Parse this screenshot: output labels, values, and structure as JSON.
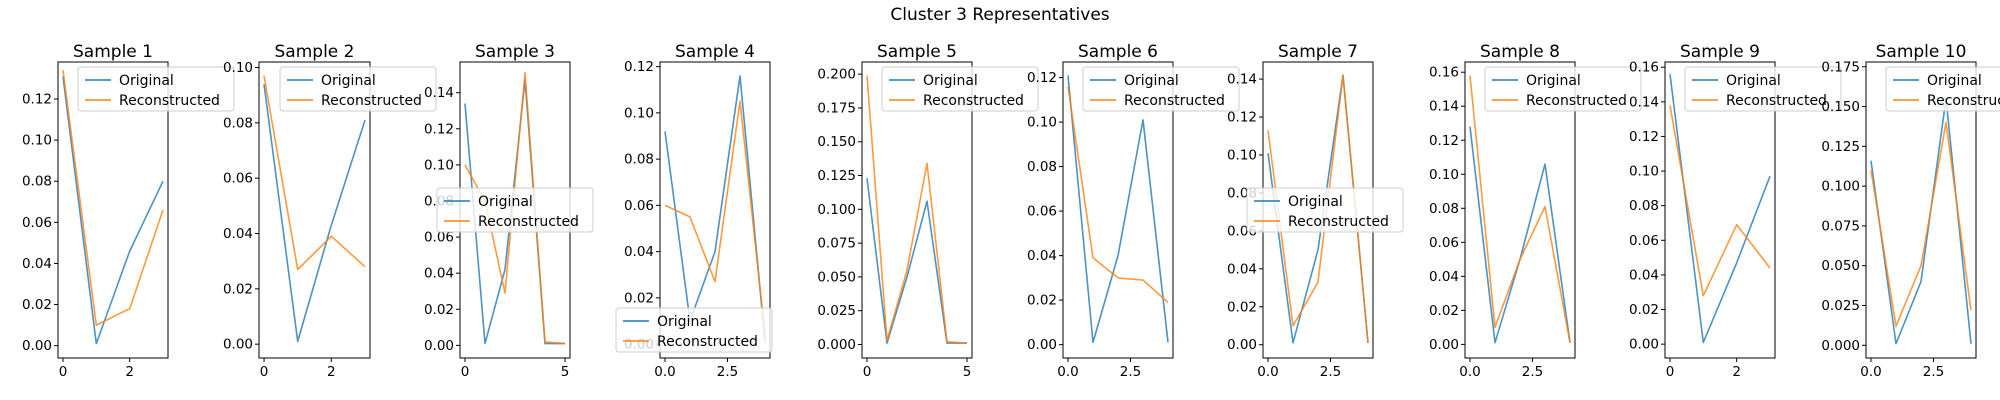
{
  "figure": {
    "title": "Cluster 3 Representatives"
  },
  "colors": {
    "original": "#1f77b4",
    "reconstructed": "#ff7f0e"
  },
  "chart_data": [
    {
      "type": "line",
      "title": "Sample 1",
      "x_ticks": [
        "0",
        "2"
      ],
      "x_tick_values": [
        0,
        2
      ],
      "xlim": [
        -0.15,
        3.15
      ],
      "y_ticks": [
        "0.00",
        "0.02",
        "0.04",
        "0.06",
        "0.08",
        "0.10",
        "0.12"
      ],
      "y_tick_values": [
        0,
        0.02,
        0.04,
        0.06,
        0.08,
        0.1,
        0.12
      ],
      "ylim": [
        -0.006,
        0.138
      ],
      "legend_position": "upper right",
      "series": [
        {
          "name": "Original",
          "x": [
            0,
            1,
            2,
            3
          ],
          "y": [
            0.131,
            0.001,
            0.046,
            0.08
          ]
        },
        {
          "name": "Reconstructed",
          "x": [
            0,
            1,
            2,
            3
          ],
          "y": [
            0.134,
            0.01,
            0.018,
            0.066
          ]
        }
      ]
    },
    {
      "type": "line",
      "title": "Sample 2",
      "x_ticks": [
        "0",
        "2"
      ],
      "x_tick_values": [
        0,
        2
      ],
      "xlim": [
        -0.15,
        3.15
      ],
      "y_ticks": [
        "0.00",
        "0.02",
        "0.04",
        "0.06",
        "0.08",
        "0.10"
      ],
      "y_tick_values": [
        0,
        0.02,
        0.04,
        0.06,
        0.08,
        0.1
      ],
      "ylim": [
        -0.005,
        0.102
      ],
      "legend_position": "upper right",
      "series": [
        {
          "name": "Original",
          "x": [
            0,
            1,
            2,
            3
          ],
          "y": [
            0.094,
            0.001,
            0.043,
            0.081
          ]
        },
        {
          "name": "Reconstructed",
          "x": [
            0,
            1,
            2,
            3
          ],
          "y": [
            0.097,
            0.027,
            0.039,
            0.028
          ]
        }
      ]
    },
    {
      "type": "line",
      "title": "Sample 3",
      "x_ticks": [
        "0",
        "5"
      ],
      "x_tick_values": [
        0,
        5
      ],
      "xlim": [
        -0.25,
        5.25
      ],
      "y_ticks": [
        "0.00",
        "0.02",
        "0.04",
        "0.06",
        "0.08",
        "0.10",
        "0.12",
        "0.14"
      ],
      "y_tick_values": [
        0,
        0.02,
        0.04,
        0.06,
        0.08,
        0.1,
        0.12,
        0.14
      ],
      "ylim": [
        -0.007,
        0.157
      ],
      "legend_position": "center",
      "series": [
        {
          "name": "Original",
          "x": [
            0,
            1,
            2,
            3,
            4,
            5
          ],
          "y": [
            0.134,
            0.001,
            0.042,
            0.147,
            0.001,
            0.001
          ]
        },
        {
          "name": "Reconstructed",
          "x": [
            0,
            1,
            2,
            3,
            4,
            5
          ],
          "y": [
            0.1,
            0.08,
            0.029,
            0.151,
            0.002,
            0.001
          ]
        }
      ]
    },
    {
      "type": "line",
      "title": "Sample 4",
      "x_ticks": [
        "0.0",
        "2.5"
      ],
      "x_tick_values": [
        0,
        2.5
      ],
      "xlim": [
        -0.2,
        4.2
      ],
      "y_ticks": [
        "0.00",
        "0.02",
        "0.04",
        "0.06",
        "0.08",
        "0.10",
        "0.12"
      ],
      "y_tick_values": [
        0,
        0.02,
        0.04,
        0.06,
        0.08,
        0.1,
        0.12
      ],
      "ylim": [
        -0.006,
        0.122
      ],
      "legend_position": "lower left",
      "series": [
        {
          "name": "Original",
          "x": [
            0,
            1,
            2,
            3,
            4
          ],
          "y": [
            0.092,
            0.01,
            0.04,
            0.116,
            0.001
          ]
        },
        {
          "name": "Reconstructed",
          "x": [
            0,
            1,
            2,
            3,
            4
          ],
          "y": [
            0.06,
            0.055,
            0.027,
            0.105,
            0.004
          ]
        }
      ]
    },
    {
      "type": "line",
      "title": "Sample 5",
      "x_ticks": [
        "0",
        "5"
      ],
      "x_tick_values": [
        0,
        5
      ],
      "xlim": [
        -0.25,
        5.25
      ],
      "y_ticks": [
        "0.000",
        "0.025",
        "0.050",
        "0.075",
        "0.100",
        "0.125",
        "0.150",
        "0.175",
        "0.200"
      ],
      "y_tick_values": [
        0,
        0.025,
        0.05,
        0.075,
        0.1,
        0.125,
        0.15,
        0.175,
        0.2
      ],
      "ylim": [
        -0.01,
        0.209
      ],
      "legend_position": "upper right",
      "series": [
        {
          "name": "Original",
          "x": [
            0,
            1,
            2,
            3,
            4,
            5
          ],
          "y": [
            0.123,
            0.001,
            0.05,
            0.106,
            0.001,
            0.001
          ]
        },
        {
          "name": "Reconstructed",
          "x": [
            0,
            1,
            2,
            3,
            4,
            5
          ],
          "y": [
            0.199,
            0.003,
            0.055,
            0.134,
            0.002,
            0.001
          ]
        }
      ]
    },
    {
      "type": "line",
      "title": "Sample 6",
      "x_ticks": [
        "0.0",
        "2.5"
      ],
      "x_tick_values": [
        0,
        2.5
      ],
      "xlim": [
        -0.2,
        4.2
      ],
      "y_ticks": [
        "0.00",
        "0.02",
        "0.04",
        "0.06",
        "0.08",
        "0.10",
        "0.12"
      ],
      "y_tick_values": [
        0,
        0.02,
        0.04,
        0.06,
        0.08,
        0.1,
        0.12
      ],
      "ylim": [
        -0.006,
        0.127
      ],
      "legend_position": "upper right",
      "series": [
        {
          "name": "Original",
          "x": [
            0,
            1,
            2,
            3,
            4
          ],
          "y": [
            0.121,
            0.001,
            0.04,
            0.101,
            0.001
          ]
        },
        {
          "name": "Reconstructed",
          "x": [
            0,
            1,
            2,
            3,
            4
          ],
          "y": [
            0.116,
            0.039,
            0.03,
            0.029,
            0.019
          ]
        }
      ]
    },
    {
      "type": "line",
      "title": "Sample 7",
      "x_ticks": [
        "0.0",
        "2.5"
      ],
      "x_tick_values": [
        0,
        2.5
      ],
      "xlim": [
        -0.2,
        4.2
      ],
      "y_ticks": [
        "0.00",
        "0.02",
        "0.04",
        "0.06",
        "0.08",
        "0.10",
        "0.12",
        "0.14"
      ],
      "y_tick_values": [
        0,
        0.02,
        0.04,
        0.06,
        0.08,
        0.1,
        0.12,
        0.14
      ],
      "ylim": [
        -0.007,
        0.149
      ],
      "legend_position": "center left",
      "series": [
        {
          "name": "Original",
          "x": [
            0,
            1,
            2,
            3,
            4
          ],
          "y": [
            0.101,
            0.001,
            0.05,
            0.142,
            0.001
          ]
        },
        {
          "name": "Reconstructed",
          "x": [
            0,
            1,
            2,
            3,
            4
          ],
          "y": [
            0.113,
            0.01,
            0.033,
            0.142,
            0.001
          ]
        }
      ]
    },
    {
      "type": "line",
      "title": "Sample 8",
      "x_ticks": [
        "0.0",
        "2.5"
      ],
      "x_tick_values": [
        0,
        2.5
      ],
      "xlim": [
        -0.2,
        4.2
      ],
      "y_ticks": [
        "0.00",
        "0.02",
        "0.04",
        "0.06",
        "0.08",
        "0.10",
        "0.12",
        "0.14",
        "0.16"
      ],
      "y_tick_values": [
        0,
        0.02,
        0.04,
        0.06,
        0.08,
        0.1,
        0.12,
        0.14,
        0.16
      ],
      "ylim": [
        -0.008,
        0.166
      ],
      "legend_position": "upper right",
      "series": [
        {
          "name": "Original",
          "x": [
            0,
            1,
            2,
            3,
            4
          ],
          "y": [
            0.128,
            0.001,
            0.05,
            0.106,
            0.001
          ]
        },
        {
          "name": "Reconstructed",
          "x": [
            0,
            1,
            2,
            3,
            4
          ],
          "y": [
            0.158,
            0.01,
            0.05,
            0.081,
            0.001
          ]
        }
      ]
    },
    {
      "type": "line",
      "title": "Sample 9",
      "x_ticks": [
        "0",
        "2"
      ],
      "x_tick_values": [
        0,
        2
      ],
      "xlim": [
        -0.15,
        3.15
      ],
      "y_ticks": [
        "0.00",
        "0.02",
        "0.04",
        "0.06",
        "0.08",
        "0.10",
        "0.12",
        "0.14",
        "0.16"
      ],
      "y_tick_values": [
        0,
        0.02,
        0.04,
        0.06,
        0.08,
        0.1,
        0.12,
        0.14,
        0.16
      ],
      "ylim": [
        -0.008,
        0.163
      ],
      "legend_position": "upper right",
      "series": [
        {
          "name": "Original",
          "x": [
            0,
            1,
            2,
            3
          ],
          "y": [
            0.156,
            0.001,
            0.047,
            0.097
          ]
        },
        {
          "name": "Reconstructed",
          "x": [
            0,
            1,
            2,
            3
          ],
          "y": [
            0.138,
            0.028,
            0.069,
            0.044
          ]
        }
      ]
    },
    {
      "type": "line",
      "title": "Sample 10",
      "x_ticks": [
        "0.0",
        "2.5"
      ],
      "x_tick_values": [
        0,
        2.5
      ],
      "xlim": [
        -0.2,
        4.2
      ],
      "y_ticks": [
        "0.000",
        "0.025",
        "0.050",
        "0.075",
        "0.100",
        "0.125",
        "0.150",
        "0.175"
      ],
      "y_tick_values": [
        0,
        0.025,
        0.05,
        0.075,
        0.1,
        0.125,
        0.15,
        0.175
      ],
      "ylim": [
        -0.008,
        0.178
      ],
      "legend_position": "upper right",
      "series": [
        {
          "name": "Original",
          "x": [
            0,
            1,
            2,
            3,
            4
          ],
          "y": [
            0.116,
            0.001,
            0.04,
            0.155,
            0.001
          ]
        },
        {
          "name": "Reconstructed",
          "x": [
            0,
            1,
            2,
            3,
            4
          ],
          "y": [
            0.11,
            0.012,
            0.05,
            0.14,
            0.022
          ]
        }
      ]
    }
  ]
}
